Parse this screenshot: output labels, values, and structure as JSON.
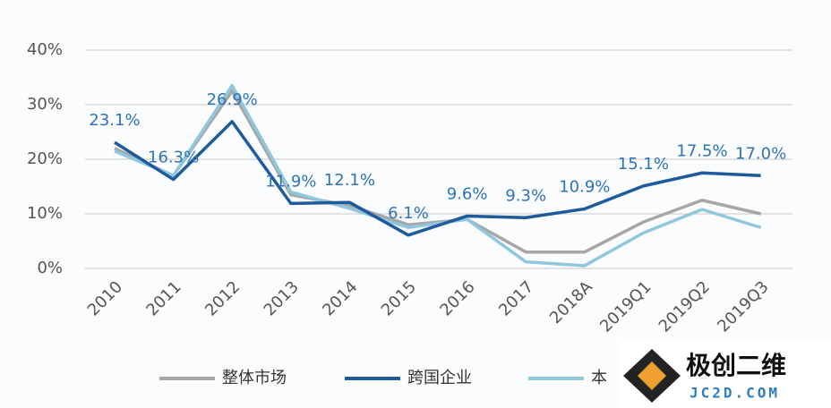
{
  "chart_data": {
    "type": "line",
    "categories": [
      "2010",
      "2011",
      "2012",
      "2013",
      "2014",
      "2015",
      "2016",
      "2017",
      "2018A",
      "2019Q1",
      "2019Q2",
      "2019Q3"
    ],
    "series": [
      {
        "name": "整体市场",
        "color": "#a6a6a8",
        "values": [
          22,
          17,
          32.5,
          13.5,
          11.5,
          8,
          9,
          3,
          3,
          8.5,
          12.5,
          10
        ]
      },
      {
        "name": "跨国企业",
        "color": "#1d5b9c",
        "values": [
          23.1,
          16.3,
          26.9,
          11.9,
          12.1,
          6.1,
          9.6,
          9.3,
          10.9,
          15.1,
          17.5,
          17.0
        ],
        "value_labels": [
          "23.1%",
          "16.3%",
          "26.9%",
          "11.9%",
          "12.1%",
          "6.1%",
          "9.6%",
          "9.3%",
          "10.9%",
          "15.1%",
          "17.5%",
          "17.0%"
        ]
      },
      {
        "name": "本",
        "color": "#8fc7dc",
        "values": [
          21.5,
          17,
          33.5,
          14,
          11,
          7.5,
          9,
          1.2,
          0.5,
          6.5,
          10.8,
          7.5
        ]
      }
    ],
    "ylim": [
      0,
      40
    ],
    "yticks": [
      {
        "value": 0,
        "label": "0%"
      },
      {
        "value": 10,
        "label": "10%"
      },
      {
        "value": 20,
        "label": "20%"
      },
      {
        "value": 30,
        "label": "30%"
      },
      {
        "value": 40,
        "label": "40%"
      }
    ],
    "grid": true
  },
  "watermark": {
    "text": "极创二维",
    "url": "JC2D.COM"
  }
}
